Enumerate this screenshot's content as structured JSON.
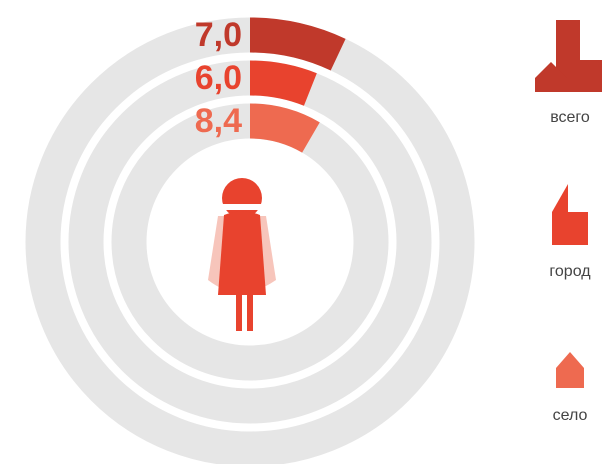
{
  "chart_data": {
    "type": "radial-bar",
    "categories": [
      "всего",
      "город",
      "село"
    ],
    "values": [
      7.0,
      6.0,
      8.4
    ],
    "value_labels": [
      "7,0",
      "6,0",
      "8,4"
    ],
    "colors": [
      "#c0392b",
      "#e8432e",
      "#ee6a50"
    ],
    "ylim": [
      0,
      100
    ]
  }
}
